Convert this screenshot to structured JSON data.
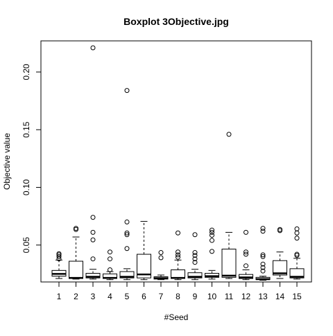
{
  "chart_data": {
    "type": "boxplot",
    "title": "Boxplot 3Objective.jpg",
    "xlabel": "#Seed",
    "ylabel": "Objective value",
    "categories": [
      "1",
      "2",
      "3",
      "4",
      "5",
      "6",
      "7",
      "8",
      "9",
      "10",
      "11",
      "12",
      "13",
      "14",
      "15"
    ],
    "ylim": [
      0.018,
      0.227
    ],
    "y_ticks": [
      {
        "value": 0.05,
        "label": "0.05"
      },
      {
        "value": 0.1,
        "label": "0.10"
      },
      {
        "value": 0.15,
        "label": "0.15"
      },
      {
        "value": 0.2,
        "label": "0.20"
      }
    ],
    "boxes": [
      {
        "category": "1",
        "whisker_low": 0.021,
        "q1": 0.023,
        "median": 0.025,
        "q3": 0.028,
        "whisker_high": 0.037,
        "outliers": [
          0.038,
          0.04,
          0.0415,
          0.0425
        ]
      },
      {
        "category": "2",
        "whisker_low": 0.0205,
        "q1": 0.021,
        "median": 0.0215,
        "q3": 0.036,
        "whisker_high": 0.057,
        "outliers": [
          0.0635,
          0.0645
        ]
      },
      {
        "category": "3",
        "whisker_low": 0.0205,
        "q1": 0.0215,
        "median": 0.0225,
        "q3": 0.0255,
        "whisker_high": 0.029,
        "outliers": [
          0.038,
          0.0545,
          0.061,
          0.074,
          0.221
        ]
      },
      {
        "category": "4",
        "whisker_low": 0.02,
        "q1": 0.021,
        "median": 0.0215,
        "q3": 0.025,
        "whisker_high": 0.027,
        "outliers": [
          0.0285,
          0.038,
          0.044
        ]
      },
      {
        "category": "5",
        "whisker_low": 0.02,
        "q1": 0.0215,
        "median": 0.0225,
        "q3": 0.027,
        "whisker_high": 0.0295,
        "outliers": [
          0.047,
          0.059,
          0.0605,
          0.07,
          0.184
        ]
      },
      {
        "category": "6",
        "whisker_low": 0.02,
        "q1": 0.0215,
        "median": 0.0245,
        "q3": 0.042,
        "whisker_high": 0.0705,
        "outliers": []
      },
      {
        "category": "7",
        "whisker_low": 0.02,
        "q1": 0.0205,
        "median": 0.0212,
        "q3": 0.0225,
        "whisker_high": 0.024,
        "outliers": [
          0.039,
          0.0435
        ]
      },
      {
        "category": "8",
        "whisker_low": 0.02,
        "q1": 0.021,
        "median": 0.0215,
        "q3": 0.0285,
        "whisker_high": 0.037,
        "outliers": [
          0.0395,
          0.0415,
          0.044,
          0.0605
        ]
      },
      {
        "category": "9",
        "whisker_low": 0.02,
        "q1": 0.0215,
        "median": 0.0225,
        "q3": 0.026,
        "whisker_high": 0.029,
        "outliers": [
          0.035,
          0.038,
          0.041,
          0.0435,
          0.059
        ]
      },
      {
        "category": "10",
        "whisker_low": 0.0205,
        "q1": 0.022,
        "median": 0.023,
        "q3": 0.0255,
        "whisker_high": 0.028,
        "outliers": [
          0.0445,
          0.054,
          0.0585,
          0.061,
          0.063
        ]
      },
      {
        "category": "11",
        "whisker_low": 0.021,
        "q1": 0.022,
        "median": 0.0235,
        "q3": 0.0465,
        "whisker_high": 0.061,
        "outliers": [
          0.146
        ]
      },
      {
        "category": "12",
        "whisker_low": 0.02,
        "q1": 0.021,
        "median": 0.022,
        "q3": 0.0245,
        "whisker_high": 0.0285,
        "outliers": [
          0.032,
          0.042,
          0.044,
          0.061
        ]
      },
      {
        "category": "13",
        "whisker_low": 0.0195,
        "q1": 0.02,
        "median": 0.0205,
        "q3": 0.022,
        "whisker_high": 0.023,
        "outliers": [
          0.0275,
          0.0305,
          0.0335,
          0.04,
          0.0415,
          0.062,
          0.0645
        ]
      },
      {
        "category": "14",
        "whisker_low": 0.021,
        "q1": 0.024,
        "median": 0.0255,
        "q3": 0.0365,
        "whisker_high": 0.044,
        "outliers": [
          0.0625,
          0.0635
        ]
      },
      {
        "category": "15",
        "whisker_low": 0.0205,
        "q1": 0.0215,
        "median": 0.0225,
        "q3": 0.0295,
        "whisker_high": 0.0385,
        "outliers": [
          0.041,
          0.042,
          0.056,
          0.0605,
          0.064
        ]
      }
    ]
  }
}
